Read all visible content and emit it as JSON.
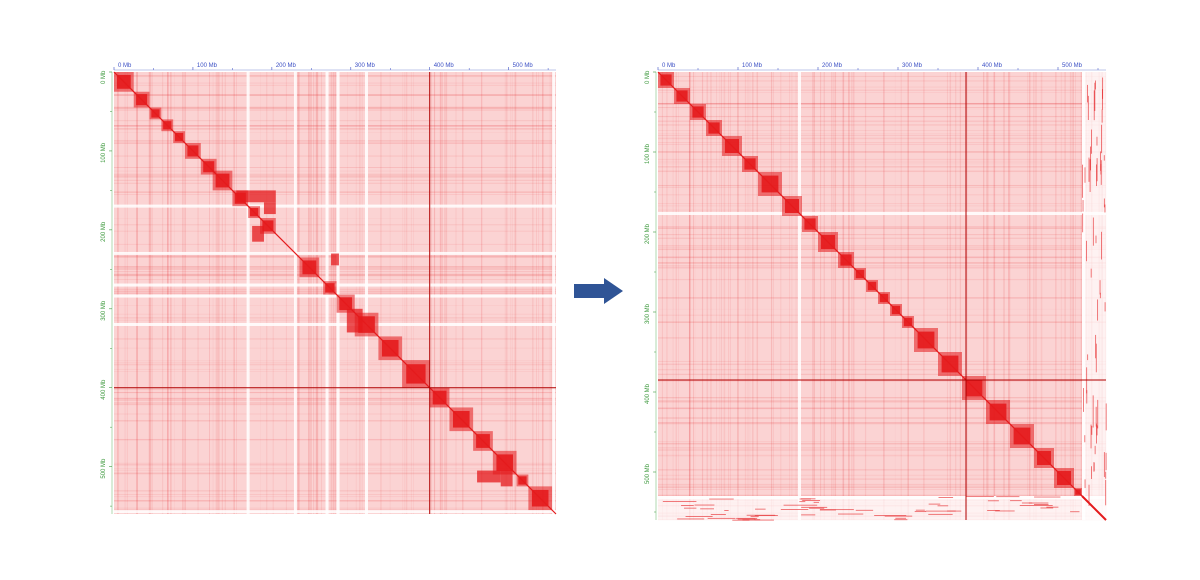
{
  "colors": {
    "heat": "#e41a1c",
    "x_tick_label": "#3b4fc4",
    "y_tick_label": "#3f9a3f",
    "arrow": "#2f5496"
  },
  "arrow": {
    "icon": "right-arrow-icon"
  },
  "chart_data": [
    {
      "type": "heatmap",
      "name_hint": "before",
      "title": "",
      "xlabel": "",
      "ylabel": "",
      "genome_mb": 560,
      "x_ticks": [
        {
          "value": 0,
          "label": "0 Mb"
        },
        {
          "value": 100,
          "label": "100 Mb"
        },
        {
          "value": 200,
          "label": "200 Mb"
        },
        {
          "value": 300,
          "label": "300 Mb"
        },
        {
          "value": 400,
          "label": "400 Mb"
        },
        {
          "value": 500,
          "label": "500 Mb"
        }
      ],
      "y_ticks": [
        {
          "value": 0,
          "label": "0 Mb"
        },
        {
          "value": 100,
          "label": "100 Mb"
        },
        {
          "value": 200,
          "label": "200 Mb"
        },
        {
          "value": 300,
          "label": "300 Mb"
        },
        {
          "value": 400,
          "label": "400 Mb"
        },
        {
          "value": 500,
          "label": "500 Mb"
        }
      ],
      "diagonal_blocks_mb": [
        [
          0,
          25
        ],
        [
          25,
          45
        ],
        [
          45,
          60
        ],
        [
          60,
          75
        ],
        [
          75,
          90
        ],
        [
          90,
          110
        ],
        [
          110,
          130
        ],
        [
          125,
          150
        ],
        [
          150,
          170
        ],
        [
          170,
          185
        ],
        [
          185,
          205
        ],
        [
          235,
          260
        ],
        [
          265,
          282
        ],
        [
          282,
          305
        ],
        [
          305,
          335
        ],
        [
          335,
          365
        ],
        [
          365,
          400
        ],
        [
          400,
          425
        ],
        [
          425,
          455
        ],
        [
          455,
          480
        ],
        [
          480,
          510
        ],
        [
          510,
          525
        ],
        [
          525,
          555
        ]
      ],
      "off_diagonal_blocks_mb": [
        [
          155,
          205,
          150,
          165
        ],
        [
          175,
          190,
          195,
          215
        ],
        [
          190,
          205,
          165,
          180
        ],
        [
          275,
          285,
          230,
          245
        ],
        [
          295,
          315,
          300,
          330
        ],
        [
          460,
          490,
          505,
          520
        ],
        [
          490,
          505,
          505,
          525
        ]
      ],
      "gap_lines_mb": [
        168,
        228,
        268,
        282,
        318,
        555
      ],
      "highlight_line_mb": 400
    },
    {
      "type": "heatmap",
      "name_hint": "after",
      "title": "",
      "xlabel": "",
      "ylabel": "",
      "genome_mb": 560,
      "x_ticks": [
        {
          "value": 0,
          "label": "0 Mb"
        },
        {
          "value": 100,
          "label": "100 Mb"
        },
        {
          "value": 200,
          "label": "200 Mb"
        },
        {
          "value": 300,
          "label": "300 Mb"
        },
        {
          "value": 400,
          "label": "400 Mb"
        },
        {
          "value": 500,
          "label": "500 Mb"
        }
      ],
      "y_ticks": [
        {
          "value": 0,
          "label": "0 Mb"
        },
        {
          "value": 100,
          "label": "100 Mb"
        },
        {
          "value": 200,
          "label": "200 Mb"
        },
        {
          "value": 300,
          "label": "300 Mb"
        },
        {
          "value": 400,
          "label": "400 Mb"
        },
        {
          "value": 500,
          "label": "500 Mb"
        }
      ],
      "diagonal_blocks_mb": [
        [
          0,
          20
        ],
        [
          20,
          40
        ],
        [
          40,
          60
        ],
        [
          60,
          80
        ],
        [
          80,
          105
        ],
        [
          105,
          125
        ],
        [
          125,
          155
        ],
        [
          155,
          180
        ],
        [
          180,
          200
        ],
        [
          200,
          225
        ],
        [
          225,
          245
        ],
        [
          245,
          260
        ],
        [
          260,
          275
        ],
        [
          275,
          290
        ],
        [
          290,
          305
        ],
        [
          305,
          320
        ],
        [
          320,
          350
        ],
        [
          350,
          380
        ],
        [
          380,
          410
        ],
        [
          410,
          440
        ],
        [
          440,
          470
        ],
        [
          470,
          495
        ],
        [
          495,
          520
        ],
        [
          520,
          530
        ]
      ],
      "off_diagonal_blocks_mb": [],
      "gap_lines_mb": [
        175,
        530
      ],
      "highlight_line_mb": 385,
      "unplaced_start_mb": 530
    }
  ]
}
